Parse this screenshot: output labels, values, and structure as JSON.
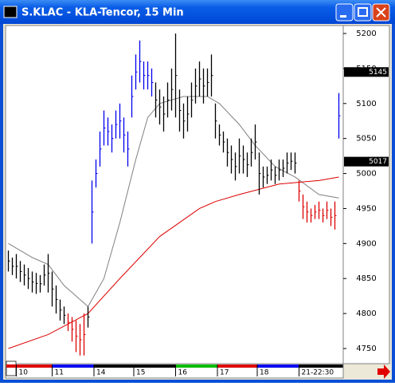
{
  "window_title": "S.KLAC - KLA-Tencor, 15 Min",
  "chart_data": {
    "type": "ohlc",
    "x": [
      0,
      1,
      2,
      3,
      4,
      5,
      6,
      7,
      8,
      9,
      10,
      11,
      12,
      13,
      14,
      15,
      16,
      17,
      18,
      19,
      20,
      21,
      22,
      23,
      24,
      25,
      26,
      27,
      28,
      29,
      30,
      31,
      32,
      33,
      34,
      35,
      36,
      37,
      38,
      39,
      40,
      41,
      42,
      43,
      44,
      45,
      46,
      47,
      48,
      49,
      50,
      51,
      52,
      53,
      54,
      55,
      56,
      57,
      58,
      59,
      60,
      61,
      62,
      63,
      64,
      65,
      66,
      67,
      68,
      69,
      70,
      71,
      72,
      73,
      74,
      75,
      76,
      77,
      78,
      79,
      80,
      81,
      82,
      83
    ],
    "high": [
      4890,
      4880,
      4885,
      4875,
      4870,
      4865,
      4860,
      4858,
      4855,
      4870,
      4885,
      4860,
      4840,
      4820,
      4810,
      4800,
      4795,
      4790,
      4785,
      4800,
      4810,
      4990,
      5020,
      5060,
      5090,
      5080,
      5070,
      5090,
      5100,
      5080,
      5060,
      5140,
      5170,
      5190,
      5160,
      5160,
      5150,
      5130,
      5120,
      5110,
      5130,
      5150,
      5200,
      5120,
      5100,
      5110,
      5130,
      5150,
      5160,
      5150,
      5150,
      5170,
      5100,
      5070,
      5060,
      5050,
      5040,
      5030,
      5050,
      5040,
      5030,
      5050,
      5070,
      5030,
      5010,
      5010,
      5020,
      5010,
      5020,
      5020,
      5030,
      5030,
      5030,
      4990,
      4970,
      4960,
      4950,
      4955,
      4960,
      4950,
      4960,
      4950,
      4960,
      5115
    ],
    "low": [
      4860,
      4855,
      4850,
      4845,
      4840,
      4835,
      4830,
      4828,
      4830,
      4840,
      4830,
      4810,
      4800,
      4790,
      4785,
      4775,
      4760,
      4745,
      4740,
      4740,
      4780,
      4900,
      4980,
      5010,
      5040,
      5040,
      5030,
      5050,
      5050,
      5030,
      5010,
      5080,
      5120,
      5130,
      5120,
      5120,
      5110,
      5080,
      5070,
      5060,
      5080,
      5090,
      5080,
      5060,
      5050,
      5060,
      5080,
      5100,
      5110,
      5100,
      5110,
      5110,
      5050,
      5040,
      5030,
      5010,
      5000,
      4990,
      5000,
      5000,
      4995,
      5010,
      5020,
      4970,
      4980,
      4985,
      4990,
      4985,
      4990,
      4995,
      5000,
      5005,
      5000,
      4960,
      4935,
      4930,
      4930,
      4935,
      4935,
      4930,
      4935,
      4925,
      4920,
      5050
    ],
    "bar_colors": [
      "#000000",
      "#000000",
      "#000000",
      "#000000",
      "#000000",
      "#000000",
      "#000000",
      "#000000",
      "#000000",
      "#000000",
      "#000000",
      "#000000",
      "#000000",
      "#000000",
      "#000000",
      "#dd0000",
      "#dd0000",
      "#dd0000",
      "#dd0000",
      "#dd0000",
      "#000000",
      "#0000ee",
      "#0000ee",
      "#0000ee",
      "#0000ee",
      "#0000ee",
      "#0000ee",
      "#0000ee",
      "#0000ee",
      "#0000ee",
      "#0000ee",
      "#0000ee",
      "#0000ee",
      "#0000ee",
      "#0000ee",
      "#0000ee",
      "#0000ee",
      "#000000",
      "#000000",
      "#000000",
      "#000000",
      "#000000",
      "#000000",
      "#000000",
      "#000000",
      "#000000",
      "#000000",
      "#000000",
      "#000000",
      "#000000",
      "#000000",
      "#000000",
      "#000000",
      "#000000",
      "#000000",
      "#000000",
      "#000000",
      "#000000",
      "#000000",
      "#000000",
      "#000000",
      "#000000",
      "#000000",
      "#000000",
      "#000000",
      "#000000",
      "#000000",
      "#000000",
      "#000000",
      "#000000",
      "#000000",
      "#000000",
      "#000000",
      "#dd0000",
      "#dd0000",
      "#dd0000",
      "#dd0000",
      "#dd0000",
      "#dd0000",
      "#dd0000",
      "#dd0000",
      "#dd0000",
      "#dd0000",
      "#0000ee"
    ],
    "lines": [
      {
        "color": "#808080",
        "x": [
          0,
          6,
          10,
          14,
          20,
          24,
          28,
          32,
          35,
          38,
          44,
          50,
          53,
          58,
          62,
          67,
          72,
          78,
          83
        ],
        "values": [
          4900,
          4880,
          4870,
          4840,
          4810,
          4850,
          4930,
          5020,
          5080,
          5100,
          5110,
          5110,
          5100,
          5070,
          5040,
          5010,
          4995,
          4970,
          4965
        ]
      },
      {
        "color": "#dd0000",
        "x": [
          0,
          10,
          20,
          28,
          38,
          48,
          52,
          58,
          68,
          78,
          83
        ],
        "values": [
          4750,
          4770,
          4800,
          4850,
          4910,
          4950,
          4960,
          4970,
          4985,
          4990,
          4995
        ]
      }
    ],
    "markers": [
      5145,
      5017
    ],
    "xlim": [
      -0.5,
      84
    ],
    "xticks": [
      {
        "value": 2,
        "label": "10"
      },
      {
        "value": 11,
        "label": "11"
      },
      {
        "value": 21.5,
        "label": "14"
      },
      {
        "value": 31.5,
        "label": "15"
      },
      {
        "value": 42,
        "label": "16"
      },
      {
        "value": 52.5,
        "label": "17"
      },
      {
        "value": 62.5,
        "label": "18"
      },
      {
        "value": 73,
        "label": "21-22:30"
      }
    ],
    "day_colors": [
      "#dd0000",
      "#0000ee",
      "#000000",
      "#000000",
      "#00bb00",
      "#dd0000",
      "#0000ee",
      "#000000"
    ],
    "ylim": [
      4729.5,
      5211.4
    ],
    "yticks": [
      4750,
      4800,
      4850,
      4900,
      4950,
      5000,
      5050,
      5100,
      5150,
      5200
    ]
  }
}
